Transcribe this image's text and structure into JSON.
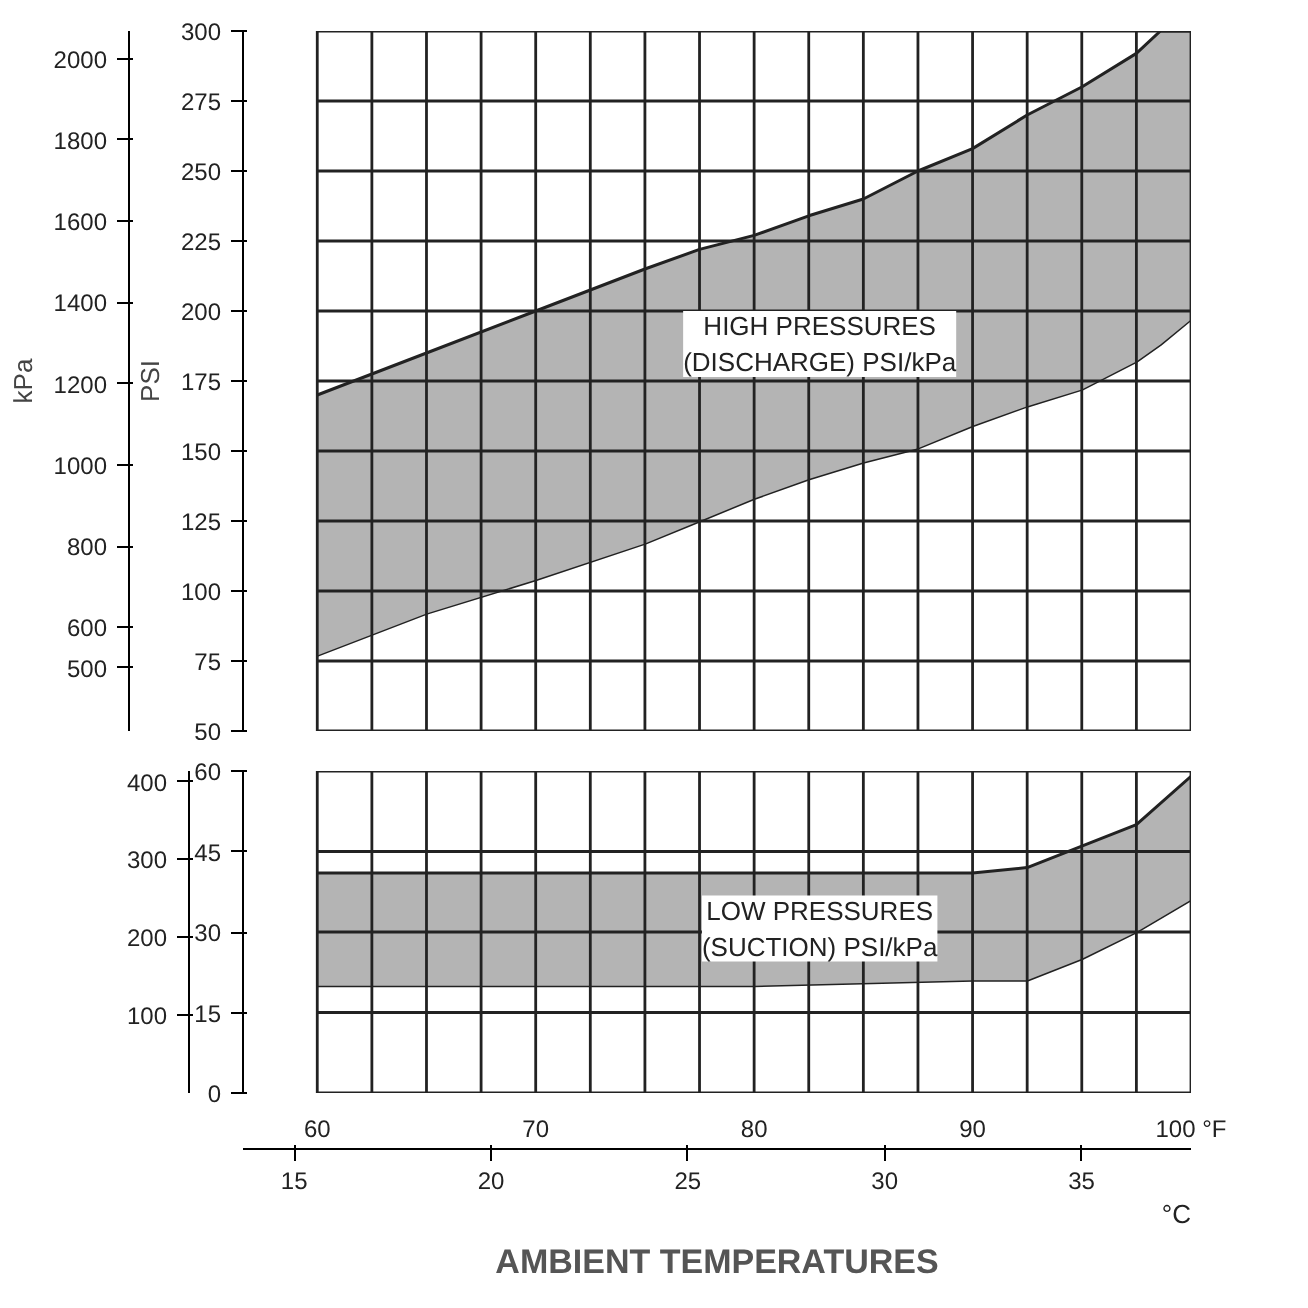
{
  "chart_data": [
    {
      "type": "area",
      "stacked": true,
      "ylabel": "PSI",
      "y2label": "kPa",
      "tick_labels": "y",
      "grid": true,
      "xlim": [
        56.6,
        100
      ],
      "xticks": [
        {
          "value": 60,
          "label": null
        },
        {
          "value": 62.5,
          "label": null
        },
        {
          "value": 65,
          "label": null
        },
        {
          "value": 67.5,
          "label": null
        },
        {
          "value": 70,
          "label": null
        },
        {
          "value": 72.5,
          "label": null
        },
        {
          "value": 75,
          "label": null
        },
        {
          "value": 77.5,
          "label": null
        },
        {
          "value": 80,
          "label": null
        },
        {
          "value": 82.5,
          "label": null
        },
        {
          "value": 85,
          "label": null
        },
        {
          "value": 87.5,
          "label": null
        },
        {
          "value": 90,
          "label": null
        },
        {
          "value": 92.5,
          "label": null
        },
        {
          "value": 95,
          "label": null
        },
        {
          "value": 97.5,
          "label": null
        },
        {
          "value": 100,
          "label": null
        }
      ],
      "ylim": [
        50,
        300
      ],
      "yticks": [
        50,
        75,
        100,
        125,
        150,
        175,
        200,
        225,
        250,
        275,
        300
      ],
      "y2lim": [
        344.7,
        2068.4
      ],
      "y2ticks": [
        500,
        600,
        800,
        1000,
        1200,
        1400,
        1600,
        1800,
        2000
      ],
      "x": [
        60,
        65,
        70,
        75,
        77.5,
        80,
        82.5,
        85,
        87.5,
        90,
        92.5,
        95,
        97.5,
        98.6,
        100
      ],
      "series": [
        {
          "color": "#ffffff",
          "values": [
            77,
            92,
            104,
            117,
            125,
            133,
            140,
            146,
            151,
            159,
            166,
            172,
            182,
            188,
            197
          ]
        },
        {
          "color": "#b4b4b4",
          "values": [
            93,
            93,
            96,
            98,
            97,
            94,
            94,
            94,
            99,
            99,
            104,
            108,
            110,
            112,
            103
          ]
        }
      ],
      "annotations": [
        "HIGH PRESSURES\n(DISCHARGE) PSI/kPa"
      ]
    },
    {
      "type": "area",
      "stacked": true,
      "xlabel": "AMBIENT TEMPERATURES",
      "x2label": "°C",
      "grid": true,
      "xlim": [
        56.6,
        100
      ],
      "xticks": [
        60,
        {
          "value": 62.5,
          "label": null
        },
        {
          "value": 65,
          "label": null
        },
        {
          "value": 67.5,
          "label": null
        },
        70,
        {
          "value": 72.5,
          "label": null
        },
        {
          "value": 75,
          "label": null
        },
        {
          "value": 77.5,
          "label": null
        },
        80,
        {
          "value": 82.5,
          "label": null
        },
        {
          "value": 85,
          "label": null
        },
        {
          "value": 87.5,
          "label": null
        },
        90,
        {
          "value": 92.5,
          "label": null
        },
        {
          "value": 95,
          "label": null
        },
        {
          "value": 97.5,
          "label": null
        },
        {
          "value": 100,
          "label": "100 °F"
        }
      ],
      "ylim": [
        0,
        60
      ],
      "yticks": [
        0,
        15,
        30,
        45,
        60
      ],
      "y2lim": [
        0,
        413.7
      ],
      "y2ticks": [
        100,
        200,
        300,
        400
      ],
      "x2lim": [
        13.7,
        37.78
      ],
      "x2ticks": [
        15,
        20,
        25,
        30,
        35
      ],
      "x": [
        60,
        70,
        80,
        90,
        92.5,
        95,
        97.5,
        100
      ],
      "series": [
        {
          "color": "#ffffff",
          "values": [
            20,
            20,
            20,
            21,
            21,
            25,
            30,
            36
          ]
        },
        {
          "color": "#b4b4b4",
          "values": [
            21,
            21,
            21,
            20,
            21,
            21,
            20,
            23
          ]
        }
      ],
      "annotations": [
        "LOW PRESSURES\n(SUCTION) PSI/kPa"
      ]
    }
  ]
}
